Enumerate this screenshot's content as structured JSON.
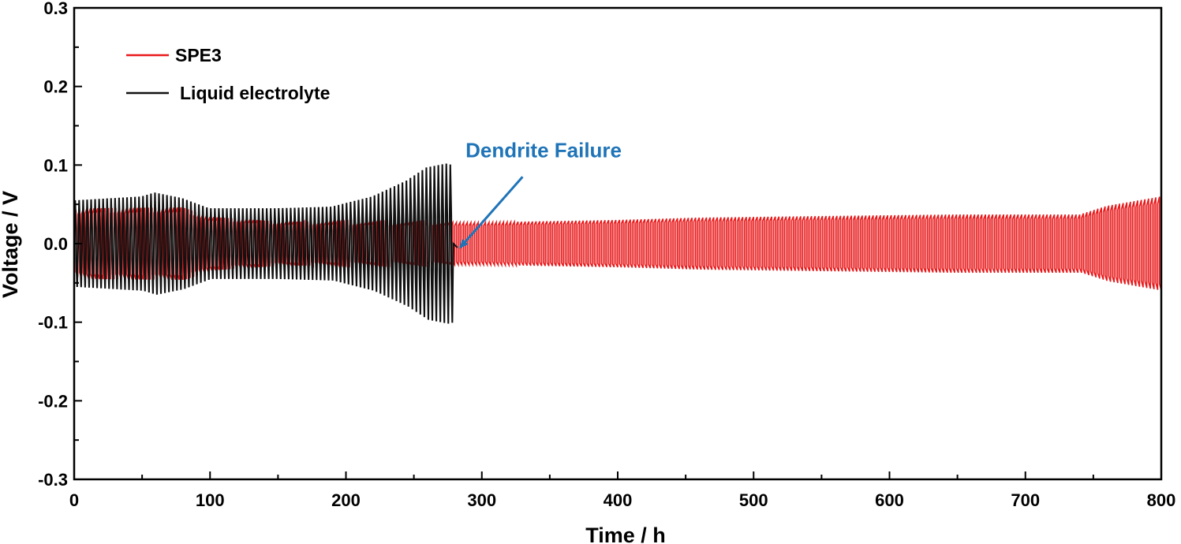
{
  "chart_data": {
    "type": "line",
    "title": "",
    "xlabel": "Time / h",
    "ylabel": "Voltage / V",
    "xlim": [
      0,
      800
    ],
    "ylim": [
      -0.3,
      0.3
    ],
    "x_ticks": [
      0,
      100,
      200,
      300,
      400,
      500,
      600,
      700,
      800
    ],
    "x_tick_labels": [
      "0",
      "100",
      "200",
      "300",
      "400",
      "500",
      "600",
      "700",
      "800"
    ],
    "y_ticks": [
      -0.3,
      -0.2,
      -0.1,
      0.0,
      0.1,
      0.2,
      0.3
    ],
    "y_tick_labels": [
      "-0.3",
      "-0.2",
      "-0.1",
      "0.0",
      "0.1",
      "0.2",
      "0.3"
    ],
    "grid": false,
    "legend_position": "top-left",
    "series": [
      {
        "name": "SPE3",
        "color": "#e8191b",
        "x_range": [
          0,
          800
        ],
        "cycles": 300,
        "amplitude_envelope": [
          [
            0,
            0.042
          ],
          [
            10,
            0.045
          ],
          [
            80,
            0.046
          ],
          [
            100,
            0.034
          ],
          [
            150,
            0.028
          ],
          [
            250,
            0.027
          ],
          [
            300,
            0.027
          ],
          [
            400,
            0.03
          ],
          [
            460,
            0.033
          ],
          [
            550,
            0.035
          ],
          [
            650,
            0.037
          ],
          [
            740,
            0.037
          ],
          [
            760,
            0.048
          ],
          [
            800,
            0.06
          ]
        ]
      },
      {
        "name": "Liquid electrolyte",
        "color": "#111111",
        "x_range": [
          0,
          279
        ],
        "cycles": 95,
        "amplitude_envelope": [
          [
            0,
            0.055
          ],
          [
            50,
            0.06
          ],
          [
            60,
            0.065
          ],
          [
            80,
            0.058
          ],
          [
            100,
            0.045
          ],
          [
            150,
            0.045
          ],
          [
            190,
            0.047
          ],
          [
            220,
            0.06
          ],
          [
            245,
            0.08
          ],
          [
            260,
            0.097
          ],
          [
            275,
            0.102
          ],
          [
            279,
            0.1
          ]
        ],
        "failure_point": [
          282,
          -0.005
        ]
      }
    ],
    "annotations": [
      {
        "text": "Dendrite Failure",
        "color": "#1f74b8",
        "points_to": [
          284,
          -0.005
        ],
        "text_anchor": [
          288,
          0.11
        ],
        "arrow_tail": [
          330,
          0.085
        ]
      }
    ]
  }
}
